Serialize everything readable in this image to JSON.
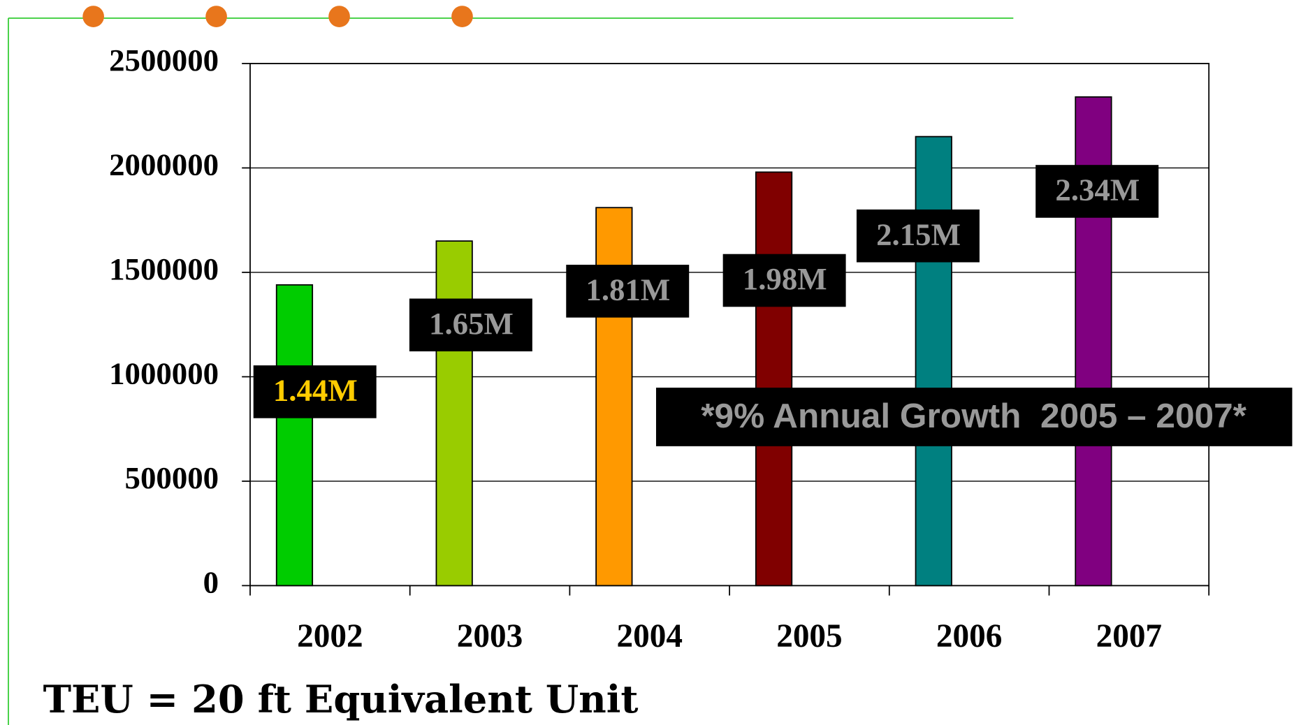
{
  "chart_data": {
    "type": "bar",
    "categories": [
      "2002",
      "2003",
      "2004",
      "2005",
      "2006",
      "2007"
    ],
    "values": [
      1440000,
      1650000,
      1810000,
      1980000,
      2150000,
      2340000
    ],
    "value_labels": [
      "1.44M",
      "1.65M",
      "1.81M",
      "1.98M",
      "2.15M",
      "2.34M"
    ],
    "colors": [
      "#00cc00",
      "#99cc00",
      "#ff9900",
      "#800000",
      "#008080",
      "#800080"
    ],
    "ylim": [
      0,
      2500000
    ],
    "yticks": [
      0,
      500000,
      1000000,
      1500000,
      2000000,
      2500000
    ],
    "grid": true,
    "annotation": "*9% Annual Growth  2005 – 2007*",
    "footnote": "TEU = 20 ft Equivalent Unit"
  }
}
